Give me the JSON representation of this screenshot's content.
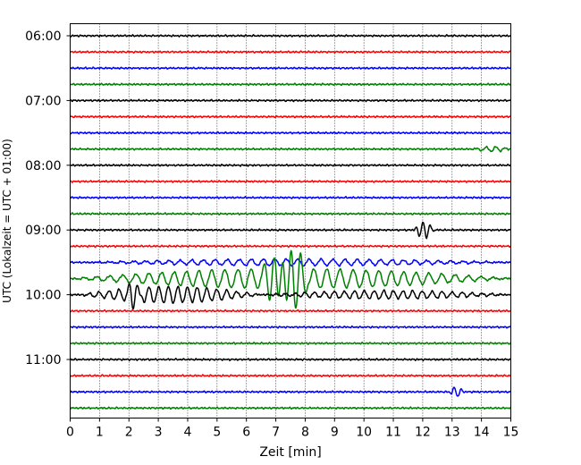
{
  "chart_data": {
    "type": "line",
    "title": "",
    "xlabel": "Zeit  [min]",
    "ylabel": "UTC (Lokalzeit = UTC + 01:00)",
    "xlim": [
      0,
      15
    ],
    "x_ticks": [
      "0",
      "1",
      "2",
      "3",
      "4",
      "5",
      "6",
      "7",
      "8",
      "9",
      "10",
      "11",
      "12",
      "13",
      "14",
      "15"
    ],
    "y_ticks": [
      "06:00",
      "07:00",
      "08:00",
      "09:00",
      "10:00",
      "11:00"
    ],
    "trace_minutes": 15,
    "trace_count": 24,
    "start_time": "06:00",
    "grid": "vertical dotted at each minute",
    "series_colors": [
      "#000000",
      "#ff0000",
      "#0000ff",
      "#008000"
    ],
    "noise_amplitude": 0.05,
    "events": [
      {
        "trace": 7,
        "x0": 13.7,
        "x1": 15,
        "amp": 0.15,
        "freq": 3.0
      },
      {
        "trace": 12,
        "x0": 11.7,
        "x1": 12.4,
        "amp": 0.5,
        "freq": 4.0
      },
      {
        "trace": 14,
        "x0": 0.5,
        "x1": 15,
        "amp": 0.2,
        "freq": 2.5
      },
      {
        "trace": 15,
        "x0": 0,
        "x1": 15,
        "amp": 0.6,
        "freq": 2.3
      },
      {
        "trace": 15,
        "x0": 6.5,
        "x1": 8.2,
        "amp": 1.6,
        "freq": 3.2
      },
      {
        "trace": 16,
        "x0": 0.3,
        "x1": 6.5,
        "amp": 0.5,
        "freq": 3.0
      },
      {
        "trace": 16,
        "x0": 1.9,
        "x1": 2.5,
        "amp": 0.6,
        "freq": 4.0
      },
      {
        "trace": 16,
        "x0": 6.5,
        "x1": 15,
        "amp": 0.25,
        "freq": 3.0
      },
      {
        "trace": 22,
        "x0": 12.9,
        "x1": 13.4,
        "amp": 0.3,
        "freq": 4.0
      }
    ]
  }
}
